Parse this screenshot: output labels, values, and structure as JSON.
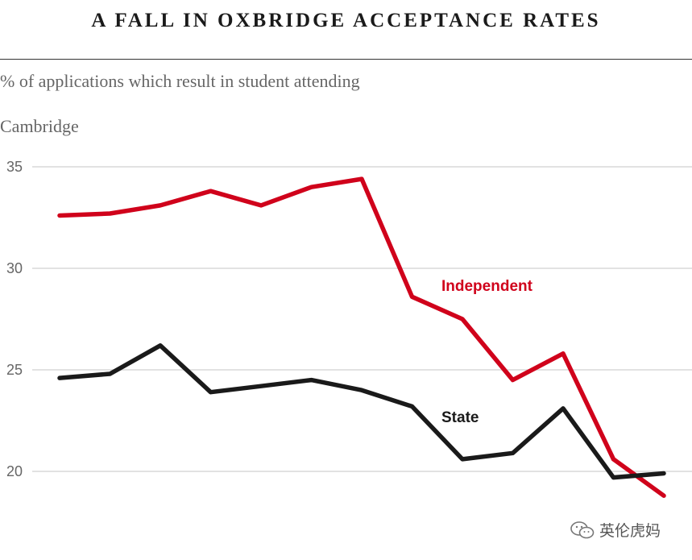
{
  "title": "A FALL IN OXBRIDGE ACCEPTANCE RATES",
  "subtitle": "% of applications which result in student attending",
  "panel_label": "Cambridge",
  "watermark_text": "英伦虎妈",
  "chart_data": {
    "type": "line",
    "title": "A FALL IN OXBRIDGE ACCEPTANCE RATES",
    "subtitle": "% of applications which result in student attending",
    "panel": "Cambridge",
    "ylim": [
      18.5,
      35.5
    ],
    "yticks": [
      20,
      25,
      30,
      35
    ],
    "grid": true,
    "legend": "inline labels",
    "series": [
      {
        "name": "Independent",
        "color": "#d0021b",
        "values": [
          32.6,
          32.7,
          33.1,
          33.8,
          33.1,
          34.0,
          34.4,
          28.6,
          27.5,
          24.5,
          25.8,
          20.6,
          18.8
        ]
      },
      {
        "name": "State",
        "color": "#1a1a1a",
        "values": [
          24.6,
          24.8,
          26.2,
          23.9,
          24.2,
          24.5,
          24.0,
          23.2,
          20.6,
          20.9,
          23.1,
          19.7,
          19.9
        ]
      }
    ]
  }
}
